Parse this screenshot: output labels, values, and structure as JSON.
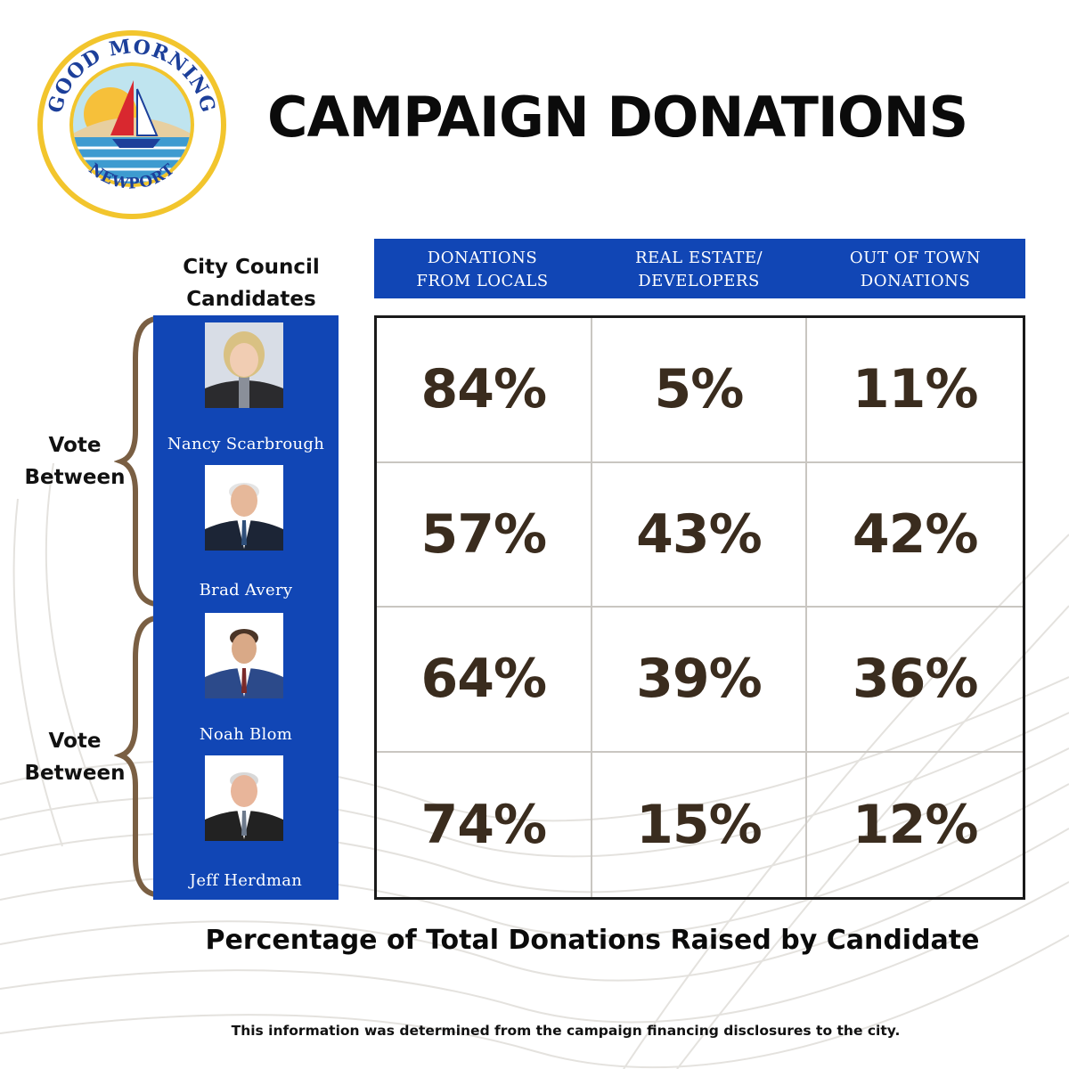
{
  "logo": {
    "top_text": "GOOD MORNING",
    "bottom_text": "NEWPORT"
  },
  "chart_data": {
    "type": "table",
    "title": "CAMPAIGN DONATIONS",
    "caption": "Percentage of Total Donations Raised by Candidate",
    "row_header_label": "City Council Candidates",
    "columns": [
      "DONATIONS FROM LOCALS",
      "REAL ESTATE/ DEVELOPERS",
      "OUT OF TOWN DONATIONS"
    ],
    "column_lines": [
      [
        "DONATIONS",
        "FROM LOCALS"
      ],
      [
        "REAL ESTATE/",
        "DEVELOPERS"
      ],
      [
        "OUT OF TOWN",
        "DONATIONS"
      ]
    ],
    "rows": [
      {
        "name": "Nancy Scarbrough",
        "values": [
          "84%",
          "5%",
          "11%"
        ]
      },
      {
        "name": "Brad Avery",
        "values": [
          "57%",
          "43%",
          "42%"
        ]
      },
      {
        "name": "Noah Blom",
        "values": [
          "64%",
          "39%",
          "36%"
        ]
      },
      {
        "name": "Jeff Herdman",
        "values": [
          "74%",
          "15%",
          "12%"
        ]
      }
    ],
    "groups": [
      {
        "label_lines": [
          "Vote",
          "Between"
        ],
        "members": [
          "Nancy Scarbrough",
          "Brad Avery"
        ]
      },
      {
        "label_lines": [
          "Vote",
          "Between"
        ],
        "members": [
          "Noah Blom",
          "Jeff Herdman"
        ]
      }
    ]
  },
  "heading_lines": [
    "City Council",
    "Candidates"
  ],
  "source_note": "This information was determined from the campaign financing disclosures to the city.",
  "colors": {
    "brand_blue": "#1146b5",
    "value_text": "#3a2c1e",
    "brace": "#7a5f43",
    "logo_ring": "#f2c52d",
    "logo_text": "#1c3f9a"
  }
}
